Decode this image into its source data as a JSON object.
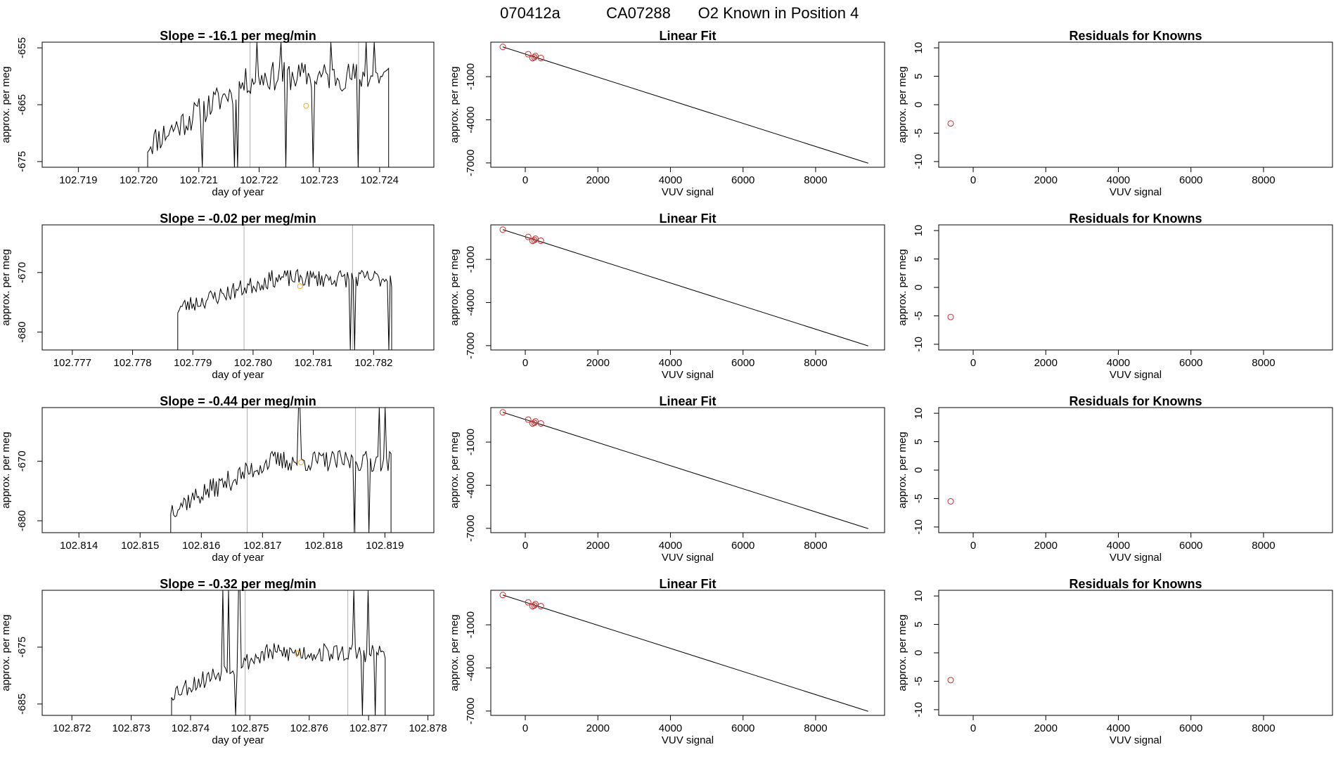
{
  "figure": {
    "run_id": "070412a",
    "tank_id": "CA07288",
    "description": "O2 Known in Position  4"
  },
  "colors": {
    "trace": "#000000",
    "marker_orange": "#f5a623",
    "marker_red": "#d62728",
    "vline": "#b0b0b0"
  },
  "chart_data": [
    {
      "type": "line",
      "row": 0,
      "panel": "timeseries",
      "title": "Slope =  -16.1  per meg/min",
      "xlabel": "day of year",
      "ylabel": "approx. per meg",
      "xlim": [
        102.7184,
        102.7249
      ],
      "ylim": [
        -676,
        -654
      ],
      "xticks": [
        102.719,
        102.72,
        102.721,
        102.722,
        102.723,
        102.724
      ],
      "xtick_labels": [
        "102.719",
        "102.720",
        "102.721",
        "102.722",
        "102.723",
        "102.724"
      ],
      "yticks": [
        -655,
        -665,
        -675
      ],
      "ytick_labels": [
        "-655",
        "-665",
        "-675"
      ],
      "vlines": [
        102.72185,
        102.72365
      ],
      "highlight": {
        "x": 102.72278,
        "y": -665.2
      },
      "seed": 11,
      "trace": {
        "start": 102.72015,
        "end": 102.72415,
        "base": -676,
        "level_start": -672,
        "level_end": -660,
        "noise": 2.6,
        "spikes": [
          [
            102.72105,
            -676
          ],
          [
            102.7216,
            -676
          ],
          [
            102.72165,
            -676
          ],
          [
            102.72195,
            -654
          ],
          [
            102.72235,
            -654
          ],
          [
            102.72245,
            -676
          ],
          [
            102.7229,
            -676
          ],
          [
            102.7232,
            -654
          ],
          [
            102.72365,
            -676
          ],
          [
            102.72378,
            -654
          ],
          [
            102.72392,
            -654
          ]
        ]
      }
    },
    {
      "type": "line",
      "row": 1,
      "panel": "timeseries",
      "title": "Slope =  -0.02  per meg/min",
      "xlabel": "day of year",
      "ylabel": "approx. per meg",
      "xlim": [
        102.7765,
        102.783
      ],
      "ylim": [
        -683,
        -662
      ],
      "xticks": [
        102.777,
        102.778,
        102.779,
        102.78,
        102.781,
        102.782
      ],
      "xtick_labels": [
        "102.777",
        "102.778",
        "102.779",
        "102.780",
        "102.781",
        "102.782"
      ],
      "yticks": [
        -670,
        -680
      ],
      "ytick_labels": [
        "-670",
        "-680"
      ],
      "vlines": [
        102.77985,
        102.78165
      ],
      "highlight": {
        "x": 102.78078,
        "y": -672.3
      },
      "seed": 23,
      "trace": {
        "start": 102.77875,
        "end": 102.7823,
        "base": -683,
        "level_start": -676,
        "level_end": -671,
        "noise": 1.5,
        "spikes": [
          [
            102.78162,
            -683
          ],
          [
            102.78168,
            -683
          ],
          [
            102.78225,
            -683
          ]
        ]
      }
    },
    {
      "type": "line",
      "row": 2,
      "panel": "timeseries",
      "title": "Slope =  -0.44  per meg/min",
      "xlabel": "day of year",
      "ylabel": "approx. per meg",
      "xlim": [
        102.8134,
        102.8198
      ],
      "ylim": [
        -682,
        -661
      ],
      "xticks": [
        102.814,
        102.815,
        102.816,
        102.817,
        102.818,
        102.819
      ],
      "xtick_labels": [
        "102.814",
        "102.815",
        "102.816",
        "102.817",
        "102.818",
        "102.819"
      ],
      "yticks": [
        -670,
        -680
      ],
      "ytick_labels": [
        "-670",
        "-680"
      ],
      "vlines": [
        102.81675,
        102.81852
      ],
      "highlight": {
        "x": 102.81763,
        "y": -670.2
      },
      "seed": 37,
      "trace": {
        "start": 102.8155,
        "end": 102.8191,
        "base": -682,
        "level_start": -678,
        "level_end": -670,
        "noise": 1.8,
        "spikes": [
          [
            102.8176,
            -661
          ],
          [
            102.8185,
            -682
          ],
          [
            102.81875,
            -682
          ],
          [
            102.8189,
            -661
          ],
          [
            102.819,
            -661
          ]
        ]
      }
    },
    {
      "type": "line",
      "row": 3,
      "panel": "timeseries",
      "title": "Slope =  -0.32  per meg/min",
      "xlabel": "day of year",
      "ylabel": "approx. per meg",
      "xlim": [
        102.8715,
        102.8781
      ],
      "ylim": [
        -687,
        -665
      ],
      "xticks": [
        102.872,
        102.873,
        102.874,
        102.875,
        102.876,
        102.877,
        102.878
      ],
      "xtick_labels": [
        "102.872",
        "102.873",
        "102.874",
        "102.875",
        "102.876",
        "102.877",
        "102.878"
      ],
      "yticks": [
        -675,
        -685
      ],
      "ytick_labels": [
        "-675",
        "-685"
      ],
      "vlines": [
        102.87492,
        102.87665
      ],
      "highlight": {
        "x": 102.8758,
        "y": -676.1
      },
      "seed": 53,
      "trace": {
        "start": 102.87368,
        "end": 102.87728,
        "base": -687,
        "level_start": -683,
        "level_end": -676,
        "noise": 1.7,
        "spikes": [
          [
            102.87455,
            -665
          ],
          [
            102.87465,
            -665
          ],
          [
            102.87475,
            -687
          ],
          [
            102.87482,
            -665
          ],
          [
            102.87675,
            -665
          ],
          [
            102.8769,
            -687
          ],
          [
            102.877,
            -665
          ],
          [
            102.87712,
            -687
          ]
        ]
      }
    },
    {
      "type": "scatter",
      "row": 0,
      "panel": "linear_fit",
      "title": "Linear Fit",
      "xlabel": "VUV signal",
      "ylabel": "approx. per meg",
      "xlim": [
        -950,
        9900
      ],
      "ylim": [
        -7300,
        1400
      ],
      "xticks": [
        0,
        2000,
        4000,
        6000,
        8000
      ],
      "xtick_labels": [
        "0",
        "2000",
        "4000",
        "6000",
        "8000"
      ],
      "yticks": [
        -1000,
        -4000,
        -7000
      ],
      "ytick_labels": [
        "-1000",
        "-4000",
        "-7000"
      ],
      "points": [
        [
          -620,
          1070
        ],
        [
          80,
          560
        ],
        [
          200,
          290
        ],
        [
          250,
          340
        ],
        [
          280,
          440
        ],
        [
          430,
          300
        ]
      ],
      "fit_line": [
        [
          -620,
          1070
        ],
        [
          9450,
          -7020
        ]
      ]
    },
    {
      "type": "scatter",
      "row": 1,
      "panel": "linear_fit",
      "title": "Linear Fit",
      "xlabel": "VUV signal",
      "ylabel": "approx. per meg",
      "xlim": [
        -950,
        9900
      ],
      "ylim": [
        -7300,
        1400
      ],
      "xticks": [
        0,
        2000,
        4000,
        6000,
        8000
      ],
      "xtick_labels": [
        "0",
        "2000",
        "4000",
        "6000",
        "8000"
      ],
      "yticks": [
        -1000,
        -4000,
        -7000
      ],
      "ytick_labels": [
        "-1000",
        "-4000",
        "-7000"
      ],
      "points": [
        [
          -620,
          1070
        ],
        [
          80,
          560
        ],
        [
          200,
          290
        ],
        [
          250,
          340
        ],
        [
          280,
          440
        ],
        [
          430,
          300
        ]
      ],
      "fit_line": [
        [
          -620,
          1070
        ],
        [
          9450,
          -7020
        ]
      ]
    },
    {
      "type": "scatter",
      "row": 2,
      "panel": "linear_fit",
      "title": "Linear Fit",
      "xlabel": "VUV signal",
      "ylabel": "approx. per meg",
      "xlim": [
        -950,
        9900
      ],
      "ylim": [
        -7300,
        1400
      ],
      "xticks": [
        0,
        2000,
        4000,
        6000,
        8000
      ],
      "xtick_labels": [
        "0",
        "2000",
        "4000",
        "6000",
        "8000"
      ],
      "yticks": [
        -1000,
        -4000,
        -7000
      ],
      "ytick_labels": [
        "-1000",
        "-4000",
        "-7000"
      ],
      "points": [
        [
          -620,
          1070
        ],
        [
          80,
          560
        ],
        [
          200,
          290
        ],
        [
          250,
          340
        ],
        [
          280,
          440
        ],
        [
          430,
          300
        ]
      ],
      "fit_line": [
        [
          -620,
          1070
        ],
        [
          9450,
          -7020
        ]
      ]
    },
    {
      "type": "scatter",
      "row": 3,
      "panel": "linear_fit",
      "title": "Linear Fit",
      "xlabel": "VUV signal",
      "ylabel": "approx. per meg",
      "xlim": [
        -950,
        9900
      ],
      "ylim": [
        -7300,
        1400
      ],
      "xticks": [
        0,
        2000,
        4000,
        6000,
        8000
      ],
      "xtick_labels": [
        "0",
        "2000",
        "4000",
        "6000",
        "8000"
      ],
      "yticks": [
        -1000,
        -4000,
        -7000
      ],
      "ytick_labels": [
        "-1000",
        "-4000",
        "-7000"
      ],
      "points": [
        [
          -620,
          1070
        ],
        [
          80,
          560
        ],
        [
          200,
          290
        ],
        [
          250,
          340
        ],
        [
          280,
          440
        ],
        [
          430,
          300
        ]
      ],
      "fit_line": [
        [
          -620,
          1070
        ],
        [
          9450,
          -7020
        ]
      ]
    },
    {
      "type": "scatter",
      "row": 0,
      "panel": "residuals",
      "title": "Residuals for Knowns",
      "xlabel": "VUV signal",
      "ylabel": "approx. per meg",
      "xlim": [
        -950,
        9900
      ],
      "ylim": [
        -11,
        11
      ],
      "xticks": [
        0,
        2000,
        4000,
        6000,
        8000
      ],
      "xtick_labels": [
        "0",
        "2000",
        "4000",
        "6000",
        "8000"
      ],
      "yticks": [
        10,
        5,
        0,
        -5,
        -10
      ],
      "ytick_labels": [
        "10",
        "5",
        "0",
        "-5",
        "-10"
      ],
      "points": [
        [
          -620,
          -3.3
        ]
      ]
    },
    {
      "type": "scatter",
      "row": 1,
      "panel": "residuals",
      "title": "Residuals for Knowns",
      "xlabel": "VUV signal",
      "ylabel": "approx. per meg",
      "xlim": [
        -950,
        9900
      ],
      "ylim": [
        -11,
        11
      ],
      "xticks": [
        0,
        2000,
        4000,
        6000,
        8000
      ],
      "xtick_labels": [
        "0",
        "2000",
        "4000",
        "6000",
        "8000"
      ],
      "yticks": [
        10,
        5,
        0,
        -5,
        -10
      ],
      "ytick_labels": [
        "10",
        "5",
        "0",
        "-5",
        "-10"
      ],
      "points": [
        [
          -620,
          -5.2
        ]
      ]
    },
    {
      "type": "scatter",
      "row": 2,
      "panel": "residuals",
      "title": "Residuals for Knowns",
      "xlabel": "VUV signal",
      "ylabel": "approx. per meg",
      "xlim": [
        -950,
        9900
      ],
      "ylim": [
        -11,
        11
      ],
      "xticks": [
        0,
        2000,
        4000,
        6000,
        8000
      ],
      "xtick_labels": [
        "0",
        "2000",
        "4000",
        "6000",
        "8000"
      ],
      "yticks": [
        10,
        5,
        0,
        -5,
        -10
      ],
      "ytick_labels": [
        "10",
        "5",
        "0",
        "-5",
        "-10"
      ],
      "points": [
        [
          -620,
          -5.5
        ]
      ]
    },
    {
      "type": "scatter",
      "row": 3,
      "panel": "residuals",
      "title": "Residuals for Knowns",
      "xlabel": "VUV signal",
      "ylabel": "approx. per meg",
      "xlim": [
        -950,
        9900
      ],
      "ylim": [
        -11,
        11
      ],
      "xticks": [
        0,
        2000,
        4000,
        6000,
        8000
      ],
      "xtick_labels": [
        "0",
        "2000",
        "4000",
        "6000",
        "8000"
      ],
      "yticks": [
        10,
        5,
        0,
        -5,
        -10
      ],
      "ytick_labels": [
        "10",
        "5",
        "0",
        "-5",
        "-10"
      ],
      "points": [
        [
          -620,
          -4.8
        ]
      ]
    }
  ]
}
